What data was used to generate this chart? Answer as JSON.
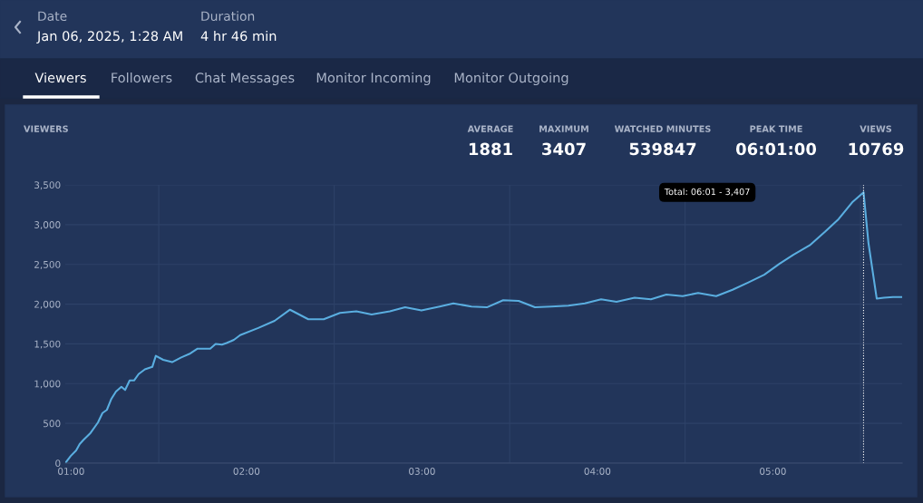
{
  "chart_data": {
    "type": "line",
    "title": "VIEWERS",
    "annotations": [
      "Date",
      "Jan 06, 2025, 1:28 AM",
      "Duration",
      "4 hr 46 min",
      "Viewers",
      "Followers",
      "Chat Messages",
      "Monitor Incoming",
      "Monitor Outgoing",
      "AVERAGE",
      "1881",
      "MAXIMUM",
      "3407",
      "WATCHED MINUTES",
      "539847",
      "PEAK TIME",
      "06:01:00",
      "VIEWS",
      "10769"
    ],
    "series": [
      {
        "color": "#5aaee0",
        "x": [
          0.967,
          0.998,
          1.029,
          1.049,
          1.07,
          1.111,
          1.153,
          1.179,
          1.204,
          1.23,
          1.256,
          1.287,
          1.308,
          1.334,
          1.359,
          1.385,
          1.421,
          1.463,
          1.483,
          1.525,
          1.576,
          1.628,
          1.68,
          1.721,
          1.793,
          1.824,
          1.86,
          1.886,
          1.928,
          1.964,
          2.067,
          2.16,
          2.248,
          2.352,
          2.44,
          2.533,
          2.626,
          2.713,
          2.817,
          2.904,
          2.997,
          3.101,
          3.179,
          3.282,
          3.37,
          3.463,
          3.551,
          3.644,
          3.737,
          3.835,
          3.928,
          4.021,
          4.109,
          4.212,
          4.305,
          4.393,
          4.486,
          4.574,
          4.677,
          4.77,
          4.858,
          4.951,
          5.039,
          5.117,
          5.21,
          5.297,
          5.375,
          5.452,
          5.517,
          5.545,
          5.592,
          5.633,
          5.685,
          5.737
        ],
        "values": [
          0,
          90,
          160,
          240,
          290,
          380,
          510,
          630,
          670,
          810,
          900,
          960,
          920,
          1040,
          1040,
          1120,
          1180,
          1210,
          1350,
          1300,
          1270,
          1330,
          1380,
          1440,
          1440,
          1500,
          1490,
          1510,
          1550,
          1610,
          1700,
          1790,
          1930,
          1810,
          1810,
          1890,
          1910,
          1870,
          1910,
          1960,
          1920,
          1970,
          2010,
          1970,
          1960,
          2050,
          2040,
          1960,
          1970,
          1980,
          2010,
          2060,
          2030,
          2080,
          2060,
          2120,
          2100,
          2140,
          2100,
          2180,
          2270,
          2370,
          2510,
          2620,
          2740,
          2910,
          3070,
          3280,
          3407,
          2770,
          2070,
          2080,
          2090,
          2090
        ]
      }
    ],
    "xlim": [
      0.967,
      5.737
    ],
    "xticks": [
      {
        "value": 1,
        "label": "01:00"
      },
      {
        "value": 1.5,
        "label": null
      },
      {
        "value": 2,
        "label": "02:00"
      },
      {
        "value": 2.5,
        "label": null
      },
      {
        "value": 3,
        "label": "03:00"
      },
      {
        "value": 3.5,
        "label": null
      },
      {
        "value": 4,
        "label": "04:00"
      },
      {
        "value": 4.5,
        "label": null
      },
      {
        "value": 5,
        "label": "05:00"
      },
      {
        "value": 5.5,
        "label": null
      }
    ],
    "ylim": [
      0,
      3500
    ],
    "yticks": [
      {
        "value": 0,
        "label": "0"
      },
      {
        "value": 500,
        "label": "500"
      },
      {
        "value": 1000,
        "label": "1,000"
      },
      {
        "value": 1500,
        "label": "1,500"
      },
      {
        "value": 2000,
        "label": "2,000"
      },
      {
        "value": 2500,
        "label": "2,500"
      },
      {
        "value": 3000,
        "label": "3,000"
      },
      {
        "value": 3500,
        "label": "3,500"
      }
    ],
    "ref_lines": [
      {
        "axis": "x",
        "value": 5.517,
        "label": "Total: 06:01 - 3,407",
        "color": "#ffffff",
        "line_style": "dotted"
      }
    ],
    "grid": true,
    "marker": "none",
    "line_style": "solid",
    "legend": false
  }
}
